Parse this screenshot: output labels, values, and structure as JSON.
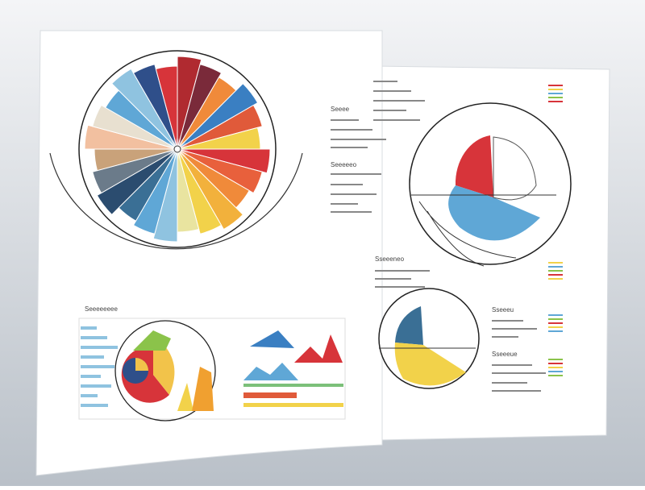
{
  "labels": {
    "wheel_page": {
      "sub_headings": [
        "Seeee",
        "Seeeeeo"
      ],
      "chart_heading": "Seeeeeeee"
    },
    "back_page": {
      "headings": [
        "Sseeeneo",
        "Sseeeu",
        "Sseeeue"
      ]
    }
  }
}
